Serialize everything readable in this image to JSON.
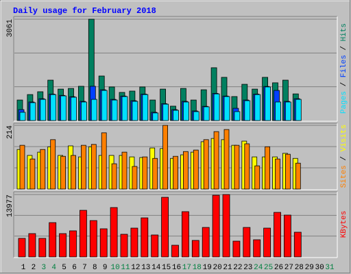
{
  "legend_separator": " / ",
  "chart_data": [
    {
      "type": "bar",
      "title": "Daily usage for February 2018",
      "ylim": [
        0,
        3061
      ],
      "yticks": [
        3061
      ],
      "grid_divisions": 3,
      "series": [
        {
          "name": "Pages",
          "color": "#00e0ff",
          "values": [
            250,
            540,
            640,
            785,
            745,
            705,
            560,
            640,
            910,
            620,
            725,
            580,
            785,
            230,
            495,
            310,
            560,
            270,
            415,
            805,
            725,
            270,
            600,
            785,
            1015,
            560,
            560,
            640,
            null,
            null,
            null
          ]
        },
        {
          "name": "Files",
          "color": "#0040ff",
          "values": [
            330,
            560,
            660,
            800,
            760,
            720,
            580,
            1035,
            930,
            640,
            740,
            600,
            800,
            250,
            510,
            330,
            580,
            290,
            430,
            820,
            740,
            370,
            620,
            800,
            1030,
            910,
            580,
            660,
            null,
            null,
            null
          ]
        },
        {
          "name": "Hits",
          "color": "#008060",
          "values": [
            620,
            785,
            870,
            1220,
            950,
            970,
            1035,
            3061,
            1345,
            1015,
            850,
            890,
            1015,
            620,
            950,
            435,
            970,
            620,
            930,
            1595,
            1305,
            725,
            1095,
            950,
            1305,
            1140,
            1220,
            805,
            null,
            null,
            null
          ]
        }
      ]
    },
    {
      "type": "bar",
      "ylim": [
        0,
        214
      ],
      "yticks": [
        214
      ],
      "grid_divisions": 3,
      "series": [
        {
          "name": "Sites",
          "color": "#ff8000",
          "values": [
            147,
            101,
            133,
            166,
            110,
            113,
            147,
            150,
            189,
            85,
            124,
            76,
            108,
            103,
            214,
            110,
            126,
            131,
            166,
            193,
            200,
            147,
            152,
            78,
            142,
            101,
            117,
            87,
            null,
            null,
            null
          ]
        },
        {
          "name": "Visits",
          "color": "#ffff00",
          "values": [
            133,
            113,
            124,
            142,
            113,
            145,
            108,
            142,
            113,
            113,
            113,
            108,
            106,
            138,
            136,
            103,
            115,
            124,
            159,
            170,
            166,
            147,
            161,
            108,
            108,
            108,
            120,
            103,
            null,
            null,
            null
          ]
        }
      ]
    },
    {
      "type": "bar",
      "ylim": [
        0,
        13977
      ],
      "yticks": [
        13977
      ],
      "grid_divisions": 3,
      "series": [
        {
          "name": "KBytes",
          "color": "#ff0000",
          "values": [
            4150,
            5220,
            4150,
            7680,
            5220,
            5840,
            10440,
            8140,
            6300,
            11060,
            5070,
            6450,
            8750,
            4915,
            13360,
            2610,
            10140,
            3690,
            6600,
            13820,
            13977,
            3530,
            6600,
            3840,
            6450,
            9980,
            9370,
            5530,
            null,
            null,
            null
          ]
        }
      ],
      "categories": [
        "1",
        "2",
        "3",
        "4",
        "5",
        "6",
        "7",
        "8",
        "9",
        "10",
        "11",
        "12",
        "13",
        "14",
        "15",
        "16",
        "17",
        "18",
        "19",
        "20",
        "21",
        "22",
        "23",
        "24",
        "25",
        "26",
        "27",
        "28",
        "29",
        "30",
        "31"
      ],
      "label_colors": [
        "#000000",
        "#000000",
        "#008040",
        "#008040",
        "#000000",
        "#000000",
        "#000000",
        "#000000",
        "#000000",
        "#008040",
        "#008040",
        "#000000",
        "#000000",
        "#000000",
        "#000000",
        "#000000",
        "#008040",
        "#008040",
        "#000000",
        "#000000",
        "#000000",
        "#000000",
        "#000000",
        "#008040",
        "#008040",
        "#000000",
        "#000000",
        "#000000",
        "#000000",
        "#000000",
        "#008040"
      ]
    }
  ]
}
